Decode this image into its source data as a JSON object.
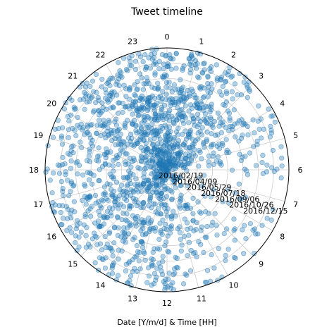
{
  "chart_data": {
    "type": "scatter",
    "projection": "polar",
    "title": "Tweet timeline",
    "xlabel": "Date [Y/m/d] & Time [HH]",
    "angular_axis": {
      "quantity": "hour of day",
      "direction": "clockwise",
      "zero_location": "top",
      "range": [
        0,
        24
      ],
      "tick_labels": [
        "0",
        "1",
        "2",
        "3",
        "4",
        "5",
        "6",
        "7",
        "8",
        "9",
        "10",
        "11",
        "12",
        "13",
        "14",
        "15",
        "16",
        "17",
        "18",
        "19",
        "20",
        "21",
        "22",
        "23"
      ]
    },
    "radial_axis": {
      "quantity": "date",
      "range": [
        "2016-01-01",
        "2017-02-03"
      ],
      "tick_labels": [
        "2016/02/19",
        "2016/04/09",
        "2016/05/29",
        "2016/07/18",
        "2016/09/06",
        "2016/10/26",
        "2016/12/15"
      ],
      "tick_label_angle_hour": 7.5
    },
    "grid": true,
    "marker": {
      "color": "#1f77b4",
      "alpha": 0.35,
      "edge_alpha": 0.6
    },
    "density_profile": {
      "hour_weight": [
        1.8,
        1.6,
        1.4,
        1.2,
        0.7,
        0.4,
        0.3,
        0.3,
        0.35,
        0.4,
        0.6,
        0.9,
        1.2,
        1.4,
        1.4,
        1.3,
        1.3,
        1.2,
        1.1,
        1.2,
        1.4,
        1.6,
        1.8,
        1.9
      ],
      "point_count_estimate": 1600,
      "date_range": [
        "2016-01-01",
        "2017-02-02"
      ]
    }
  }
}
